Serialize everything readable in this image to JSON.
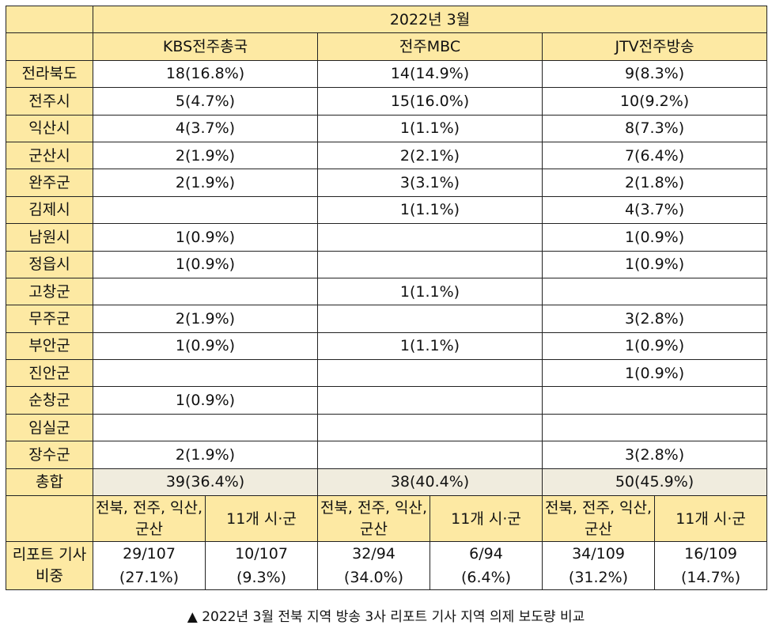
{
  "header": {
    "period": "2022년 3월",
    "broadcasters": [
      "KBS전주총국",
      "전주MBC",
      "JTV전주방송"
    ]
  },
  "rows": [
    {
      "region": "전라북도",
      "values": [
        "18(16.8%)",
        "14(14.9%)",
        "9(8.3%)"
      ]
    },
    {
      "region": "전주시",
      "values": [
        "5(4.7%)",
        "15(16.0%)",
        "10(9.2%)"
      ]
    },
    {
      "region": "익산시",
      "values": [
        "4(3.7%)",
        "1(1.1%)",
        "8(7.3%)"
      ]
    },
    {
      "region": "군산시",
      "values": [
        "2(1.9%)",
        "2(2.1%)",
        "7(6.4%)"
      ]
    },
    {
      "region": "완주군",
      "values": [
        "2(1.9%)",
        "3(3.1%)",
        "2(1.8%)"
      ]
    },
    {
      "region": "김제시",
      "values": [
        "",
        "1(1.1%)",
        "4(3.7%)"
      ]
    },
    {
      "region": "남원시",
      "values": [
        "1(0.9%)",
        "",
        "1(0.9%)"
      ]
    },
    {
      "region": "정읍시",
      "values": [
        "1(0.9%)",
        "",
        "1(0.9%)"
      ]
    },
    {
      "region": "고창군",
      "values": [
        "",
        "1(1.1%)",
        ""
      ]
    },
    {
      "region": "무주군",
      "values": [
        "2(1.9%)",
        "",
        "3(2.8%)"
      ]
    },
    {
      "region": "부안군",
      "values": [
        "1(0.9%)",
        "1(1.1%)",
        "1(0.9%)"
      ]
    },
    {
      "region": "진안군",
      "values": [
        "",
        "",
        "1(0.9%)"
      ]
    },
    {
      "region": "순창군",
      "values": [
        "1(0.9%)",
        "",
        ""
      ]
    },
    {
      "region": "임실군",
      "values": [
        "",
        "",
        ""
      ]
    },
    {
      "region": "장수군",
      "values": [
        "2(1.9%)",
        "",
        "3(2.8%)"
      ]
    }
  ],
  "total": {
    "label": "총합",
    "values": [
      "39(36.4%)",
      "38(40.4%)",
      "50(45.9%)"
    ]
  },
  "sub_header": {
    "group_a": "전북, 전주, 익산, 군산",
    "group_b": "11개 시·군"
  },
  "share": {
    "label": "리포트 기사 비중",
    "values": [
      {
        "count": "29/107",
        "pct": "(27.1%)"
      },
      {
        "count": "10/107",
        "pct": "(9.3%)"
      },
      {
        "count": "32/94",
        "pct": "(34.0%)"
      },
      {
        "count": "6/94",
        "pct": "(6.4%)"
      },
      {
        "count": "34/109",
        "pct": "(31.2%)"
      },
      {
        "count": "16/109",
        "pct": "(14.7%)"
      }
    ]
  },
  "caption": "▲ 2022년 3월 전북 지역 방송 3사 리포트 기사 지역 의제 보도량 비교"
}
